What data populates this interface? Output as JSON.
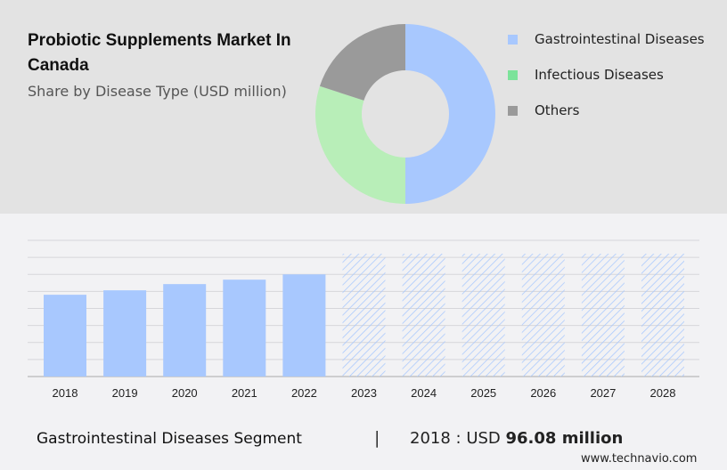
{
  "header": {
    "title": "Probiotic Supplements Market In Canada",
    "subtitle": "Share by Disease Type (USD million)"
  },
  "chart_data": [
    {
      "type": "pie",
      "variant": "donut",
      "title": "Share by Disease Type (USD million)",
      "slices": [
        {
          "label": "Gastrointestinal Diseases",
          "value": 50,
          "color": "#a8c8fe",
          "legend_color": "#a8c8fe"
        },
        {
          "label": "Infectious Diseases",
          "value": 30,
          "color": "#b8eeb8",
          "legend_color": "#7ce39a"
        },
        {
          "label": "Others",
          "value": 20,
          "color": "#9a9a9a",
          "legend_color": "#9a9a9a"
        }
      ],
      "legend": "right"
    },
    {
      "type": "bar",
      "title": "Gastrointestinal Diseases Segment",
      "categories": [
        "2018",
        "2019",
        "2020",
        "2021",
        "2022",
        "2023",
        "2024",
        "2025",
        "2026",
        "2027",
        "2028"
      ],
      "values": [
        96.08,
        101.3,
        108.6,
        113.8,
        120,
        null,
        null,
        null,
        null,
        null,
        null
      ],
      "forecast": [
        false,
        false,
        false,
        false,
        false,
        true,
        true,
        true,
        true,
        true,
        true
      ],
      "ylim": [
        0,
        160
      ],
      "grid": true,
      "color": "#a8c8fe"
    }
  ],
  "footer": {
    "segment": "Gastrointestinal Diseases Segment",
    "separator": "|",
    "year_label": "2018 : USD ",
    "value": "96.08 million",
    "brand": "www.technavio.com"
  }
}
